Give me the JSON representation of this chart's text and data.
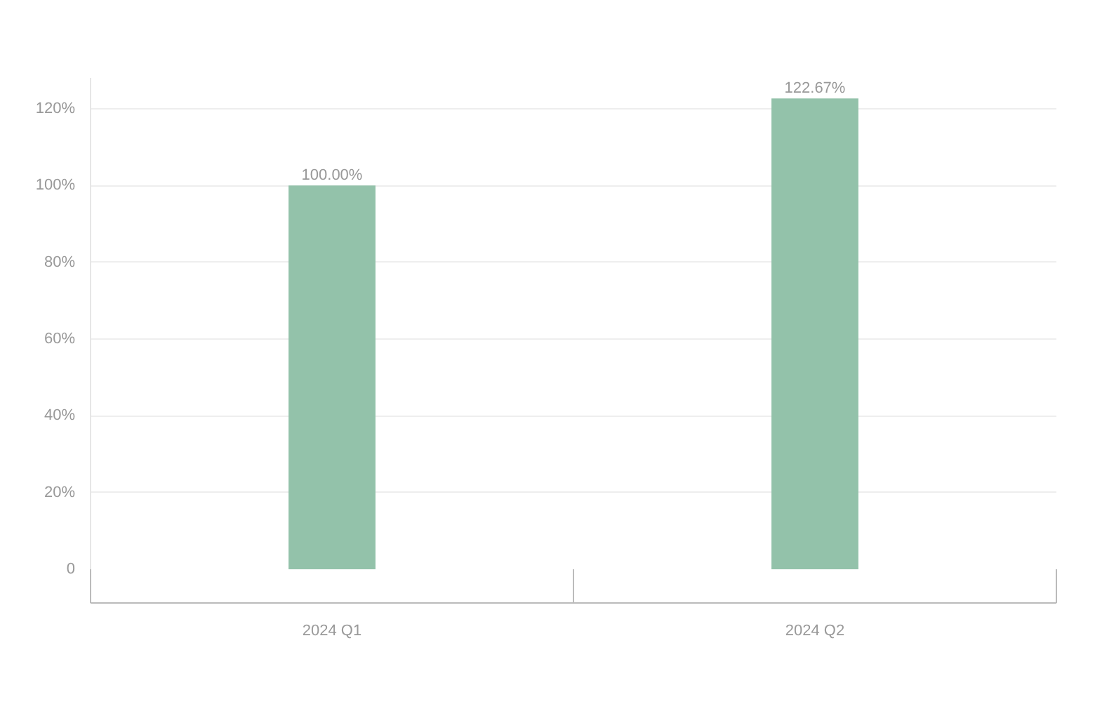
{
  "chart_data": {
    "type": "bar",
    "categories": [
      "2024 Q1",
      "2024 Q2"
    ],
    "values": [
      100,
      122.67
    ],
    "value_labels": [
      "100.00%",
      "122.67%"
    ],
    "color": "#93c2aa",
    "ylim": [
      0,
      128
    ],
    "yticks": [
      0,
      {
        "value": 20,
        "label": "20%"
      },
      {
        "value": 40,
        "label": "40%"
      },
      {
        "value": 60,
        "label": "60%"
      },
      {
        "value": 80,
        "label": "80%"
      },
      {
        "value": 100,
        "label": "100%"
      },
      {
        "value": 120,
        "label": "120%"
      }
    ],
    "grid": "y"
  }
}
